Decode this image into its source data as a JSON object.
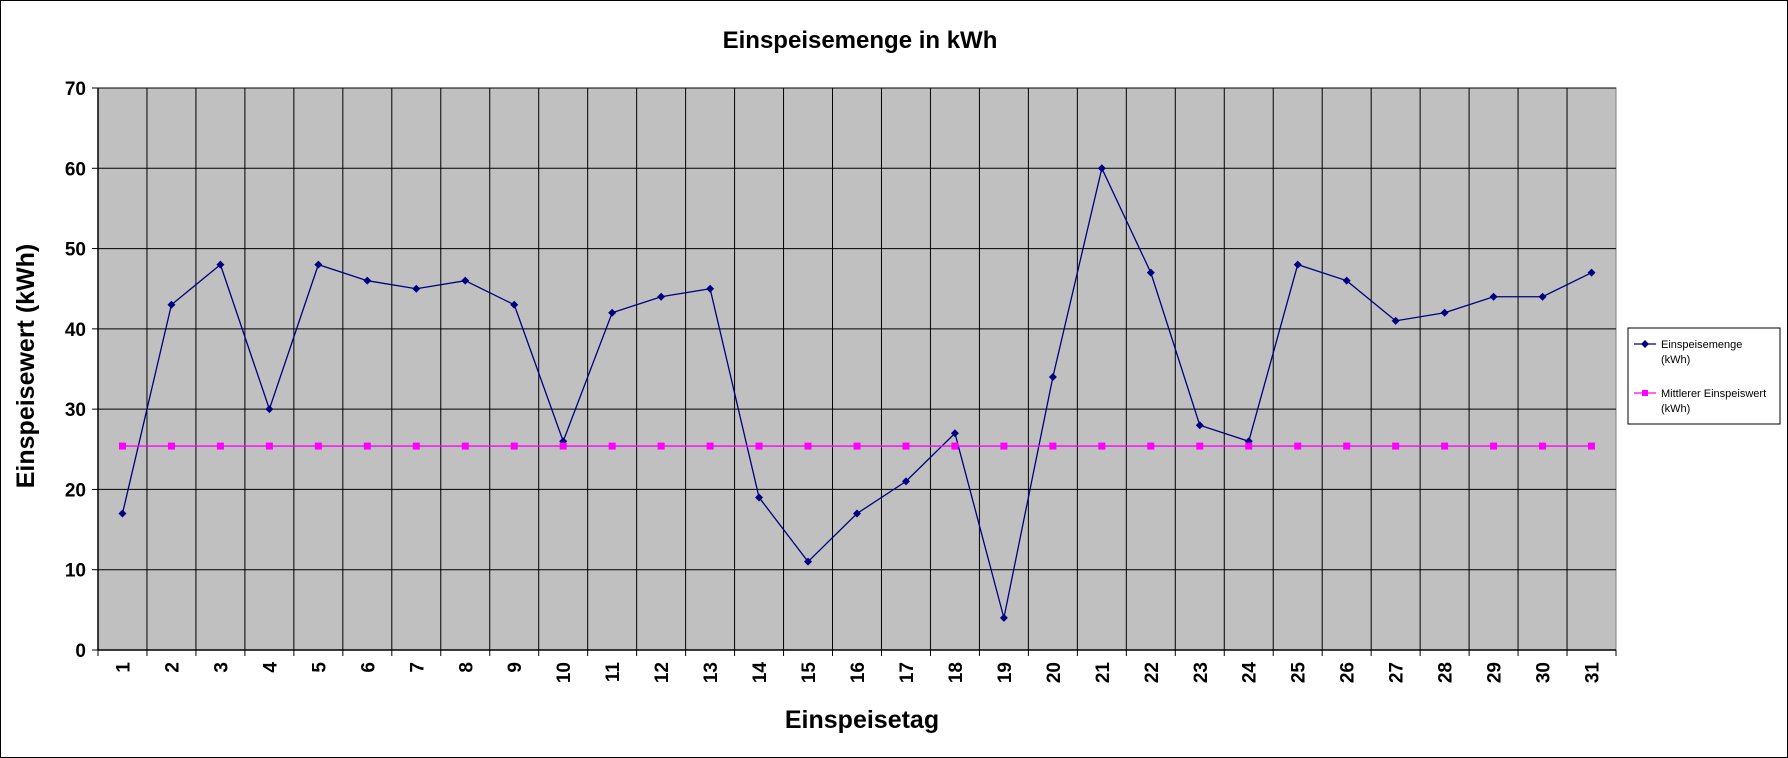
{
  "chart_data": {
    "type": "line",
    "title": "Einspeisemenge in kWh",
    "xlabel": "Einspeisetag",
    "ylabel": "Einspeisewert  (kWh)",
    "categories": [
      "1",
      "2",
      "3",
      "4",
      "5",
      "6",
      "7",
      "8",
      "9",
      "10",
      "11",
      "12",
      "13",
      "14",
      "15",
      "16",
      "17",
      "18",
      "19",
      "20",
      "21",
      "22",
      "23",
      "24",
      "25",
      "26",
      "27",
      "28",
      "29",
      "30",
      "31"
    ],
    "ylim": [
      0,
      70
    ],
    "yticks": [
      0,
      10,
      20,
      30,
      40,
      50,
      60,
      70
    ],
    "grid": true,
    "legend_position": "right",
    "plot_background": "#c0c0c0",
    "series": [
      {
        "name_lines": [
          "Einspeisemenge",
          "(kWh)"
        ],
        "color": "#000080",
        "marker": "diamond",
        "values": [
          17,
          43,
          48,
          30,
          48,
          46,
          45,
          46,
          43,
          26,
          42,
          44,
          45,
          19,
          11,
          17,
          21,
          27,
          4,
          34,
          60,
          47,
          28,
          26,
          48,
          46,
          41,
          42,
          44,
          44,
          47
        ]
      },
      {
        "name_lines": [
          "Mittlerer Einspeiswert",
          "(kWh)"
        ],
        "color": "#ff00ff",
        "marker": "square",
        "values": [
          25.4,
          25.4,
          25.4,
          25.4,
          25.4,
          25.4,
          25.4,
          25.4,
          25.4,
          25.4,
          25.4,
          25.4,
          25.4,
          25.4,
          25.4,
          25.4,
          25.4,
          25.4,
          25.4,
          25.4,
          25.4,
          25.4,
          25.4,
          25.4,
          25.4,
          25.4,
          25.4,
          25.4,
          25.4,
          25.4,
          25.4
        ]
      }
    ]
  }
}
